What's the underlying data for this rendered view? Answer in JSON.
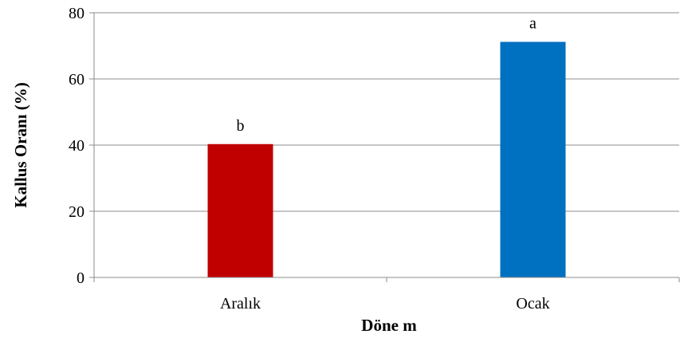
{
  "chart_data": {
    "type": "bar",
    "categories": [
      "Aralık",
      "Ocak"
    ],
    "values": [
      40.3,
      71.2
    ],
    "data_labels": [
      "b",
      "a"
    ],
    "colors": [
      "#c00000",
      "#0070c0"
    ],
    "title": "",
    "xlabel": "Döne m",
    "ylabel": "Kallus Oranı (%)",
    "ylim": [
      0,
      80
    ],
    "yticks": [
      0,
      20,
      40,
      60,
      80
    ],
    "grid": true,
    "legend": "none"
  }
}
